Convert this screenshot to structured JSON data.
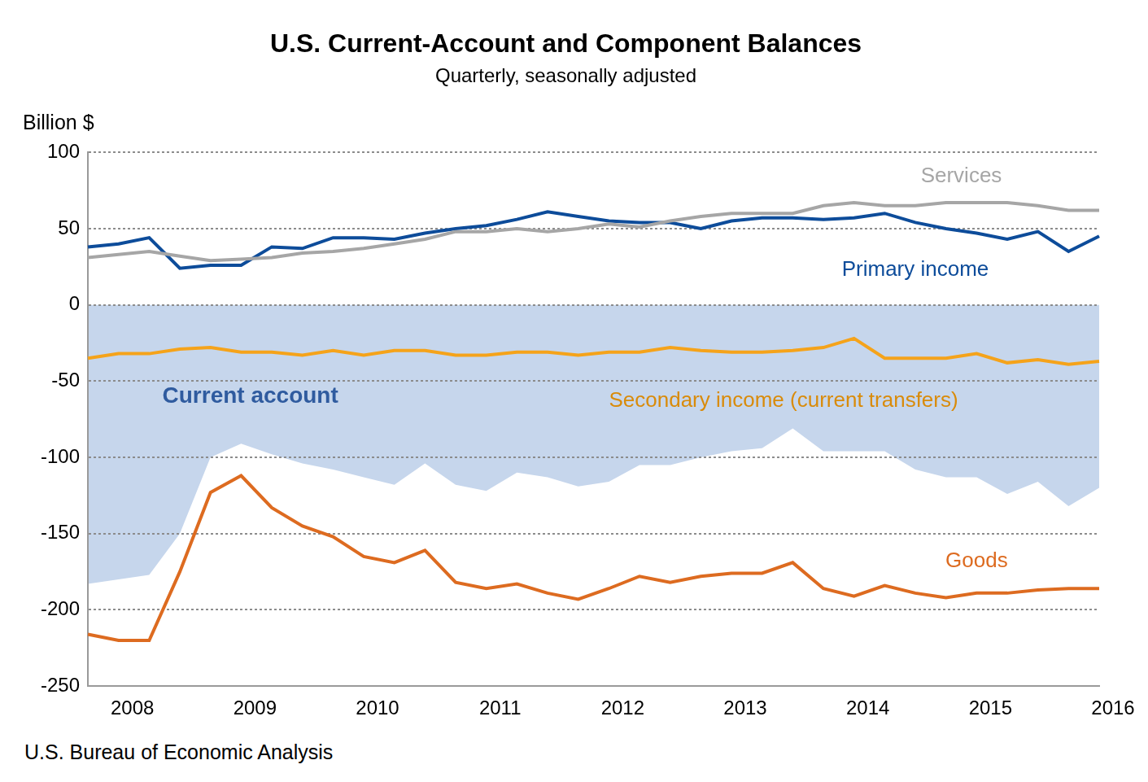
{
  "chart_data": {
    "type": "line",
    "title": "U.S. Current-Account and Component Balances",
    "subtitle": "Quarterly, seasonally adjusted",
    "y_label": "Billion $",
    "source": "U.S. Bureau of Economic Analysis",
    "categories": [
      null,
      "2008",
      null,
      null,
      null,
      "2009",
      null,
      null,
      null,
      "2010",
      null,
      null,
      null,
      "2011",
      null,
      null,
      null,
      "2012",
      null,
      null,
      null,
      "2013",
      null,
      null,
      null,
      "2014",
      null,
      null,
      null,
      "2015",
      null,
      null,
      null,
      "2016"
    ],
    "series": [
      {
        "name": "Current account",
        "type": "area",
        "color": "#c6d6ec",
        "values": [
          -183,
          -180,
          -177,
          -150,
          -100,
          -91,
          -98,
          -104,
          -108,
          -113,
          -118,
          -104,
          -118,
          -122,
          -110,
          -113,
          -119,
          -116,
          -105,
          -105,
          -100,
          -96,
          -94,
          -81,
          -96,
          -96,
          -96,
          -108,
          -113,
          -113,
          -124,
          -116,
          -132,
          -120
        ]
      },
      {
        "name": "Services",
        "type": "line",
        "color": "#a6a6a6",
        "line_style": "solid",
        "values": [
          31,
          33,
          35,
          32,
          29,
          30,
          31,
          34,
          35,
          37,
          40,
          43,
          48,
          48,
          50,
          48,
          50,
          53,
          51,
          55,
          58,
          60,
          60,
          60,
          65,
          67,
          65,
          65,
          67,
          67,
          67,
          65,
          62,
          62
        ]
      },
      {
        "name": "Primary income",
        "type": "line",
        "color": "#0d4c9a",
        "line_style": "solid",
        "values": [
          38,
          40,
          44,
          24,
          26,
          26,
          38,
          37,
          44,
          44,
          43,
          47,
          50,
          52,
          56,
          61,
          58,
          55,
          54,
          54,
          50,
          55,
          57,
          57,
          56,
          57,
          60,
          54,
          50,
          47,
          43,
          48,
          35,
          45
        ]
      },
      {
        "name": "Secondary income (current transfers)",
        "type": "line",
        "color": "#f5a31a",
        "line_style": "solid",
        "values": [
          -35,
          -32,
          -32,
          -29,
          -28,
          -31,
          -31,
          -33,
          -30,
          -33,
          -30,
          -30,
          -33,
          -33,
          -31,
          -31,
          -33,
          -31,
          -31,
          -28,
          -30,
          -31,
          -31,
          -30,
          -28,
          -22,
          -35,
          -35,
          -35,
          -32,
          -38,
          -36,
          -39,
          -37
        ]
      },
      {
        "name": "Goods",
        "type": "line",
        "color": "#dd6b20",
        "line_style": "solid",
        "values": [
          -216,
          -220,
          -220,
          -175,
          -123,
          -112,
          -133,
          -145,
          -152,
          -165,
          -169,
          -161,
          -182,
          -186,
          -183,
          -189,
          -193,
          -186,
          -178,
          -182,
          -178,
          -176,
          -176,
          -169,
          -186,
          -191,
          -184,
          -189,
          -192,
          -189,
          -189,
          -187,
          -186,
          -186
        ]
      }
    ],
    "ylim": [
      -250,
      100
    ],
    "yticks": [
      -250,
      -200,
      -150,
      -100,
      -50,
      0,
      50,
      100
    ],
    "grid": true
  }
}
